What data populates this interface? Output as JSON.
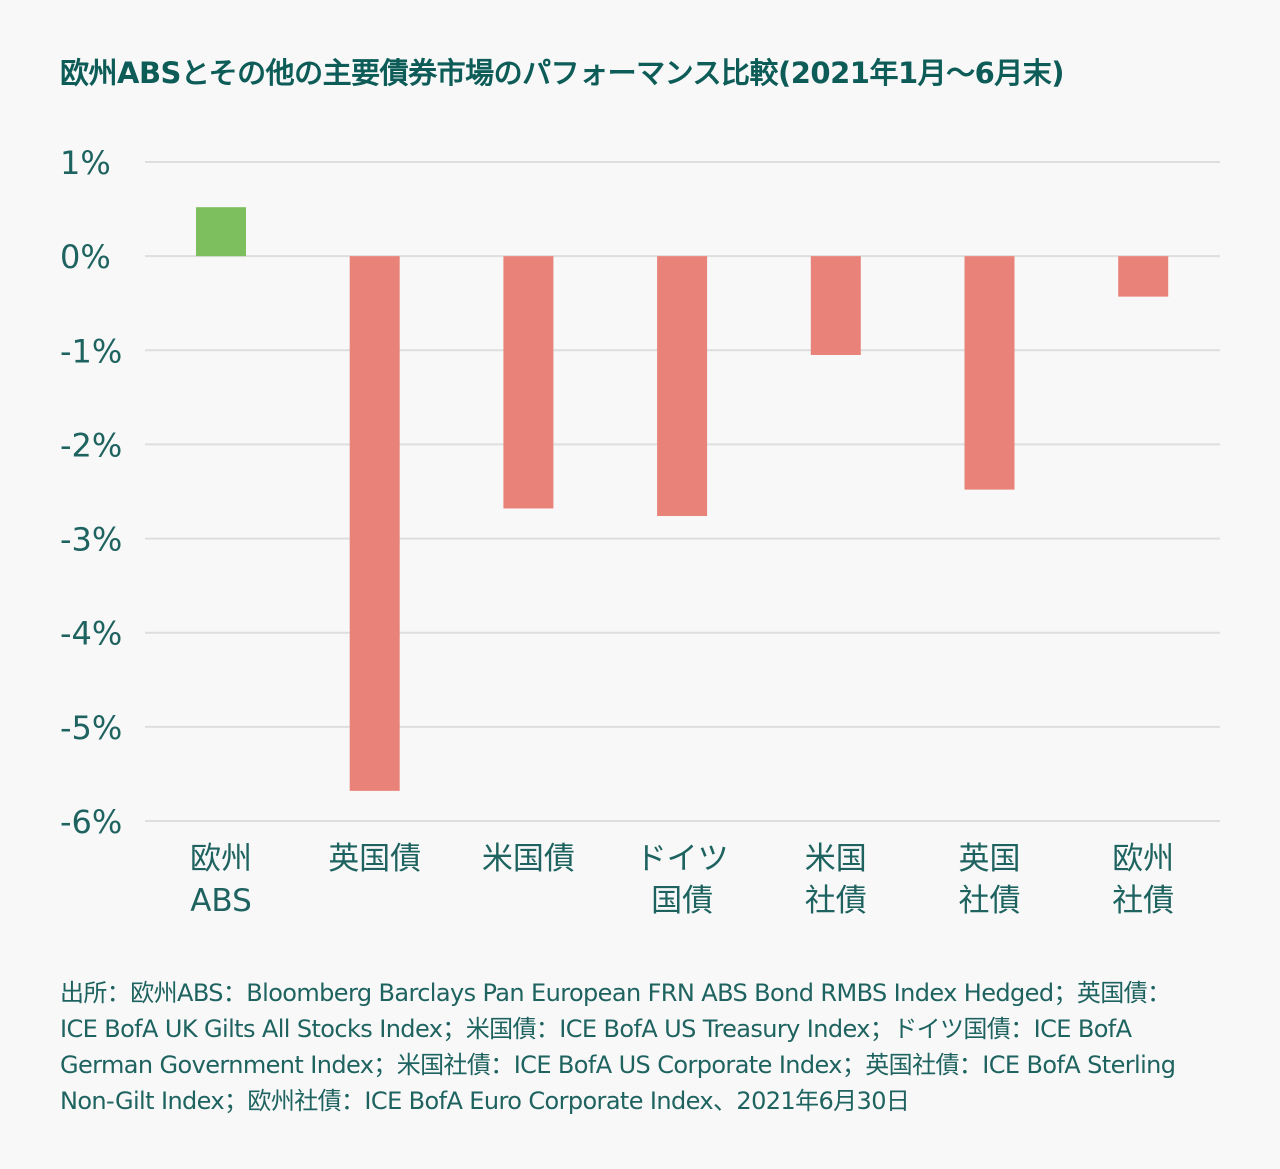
{
  "chart_data": {
    "type": "bar",
    "title": "欧州ABSとその他の主要債券市場のパフォーマンス比較(2021年1月〜6月末)",
    "categories": [
      [
        "欧州",
        "ABS"
      ],
      [
        "英国債"
      ],
      [
        "米国債"
      ],
      [
        "ドイツ",
        "国債"
      ],
      [
        "米国",
        "社債"
      ],
      [
        "英国",
        "社債"
      ],
      [
        "欧州",
        "社債"
      ]
    ],
    "values": [
      0.52,
      -5.68,
      -2.68,
      -2.76,
      -1.05,
      -2.48,
      -0.43
    ],
    "ylim": [
      -6,
      1
    ],
    "yticks": [
      1,
      0,
      -1,
      -2,
      -3,
      -4,
      -5,
      -6
    ],
    "ytick_labels": [
      "1%",
      "0%",
      "-1%",
      "-2%",
      "-3%",
      "-4%",
      "-5%",
      "-6%"
    ],
    "xlabel": "",
    "ylabel": "",
    "grid": true,
    "colors": {
      "positive": "#7dbf5e",
      "negative": "#e9837a",
      "title": "#0d5c58",
      "text": "#1e6360",
      "grid": "#dedede"
    }
  },
  "footnote": [
    "出所：欧州ABS：Bloomberg Barclays Pan European FRN ABS Bond RMBS Index Hedged；英国債：",
    "ICE BofA UK Gilts All Stocks Index；米国債：ICE BofA US Treasury Index；ドイツ国債：ICE BofA",
    "German Government Index；米国社債：ICE BofA US Corporate Index；英国社債：ICE BofA Sterling",
    "Non-Gilt Index；欧州社債：ICE BofA Euro Corporate Index、2021年6月30日"
  ]
}
